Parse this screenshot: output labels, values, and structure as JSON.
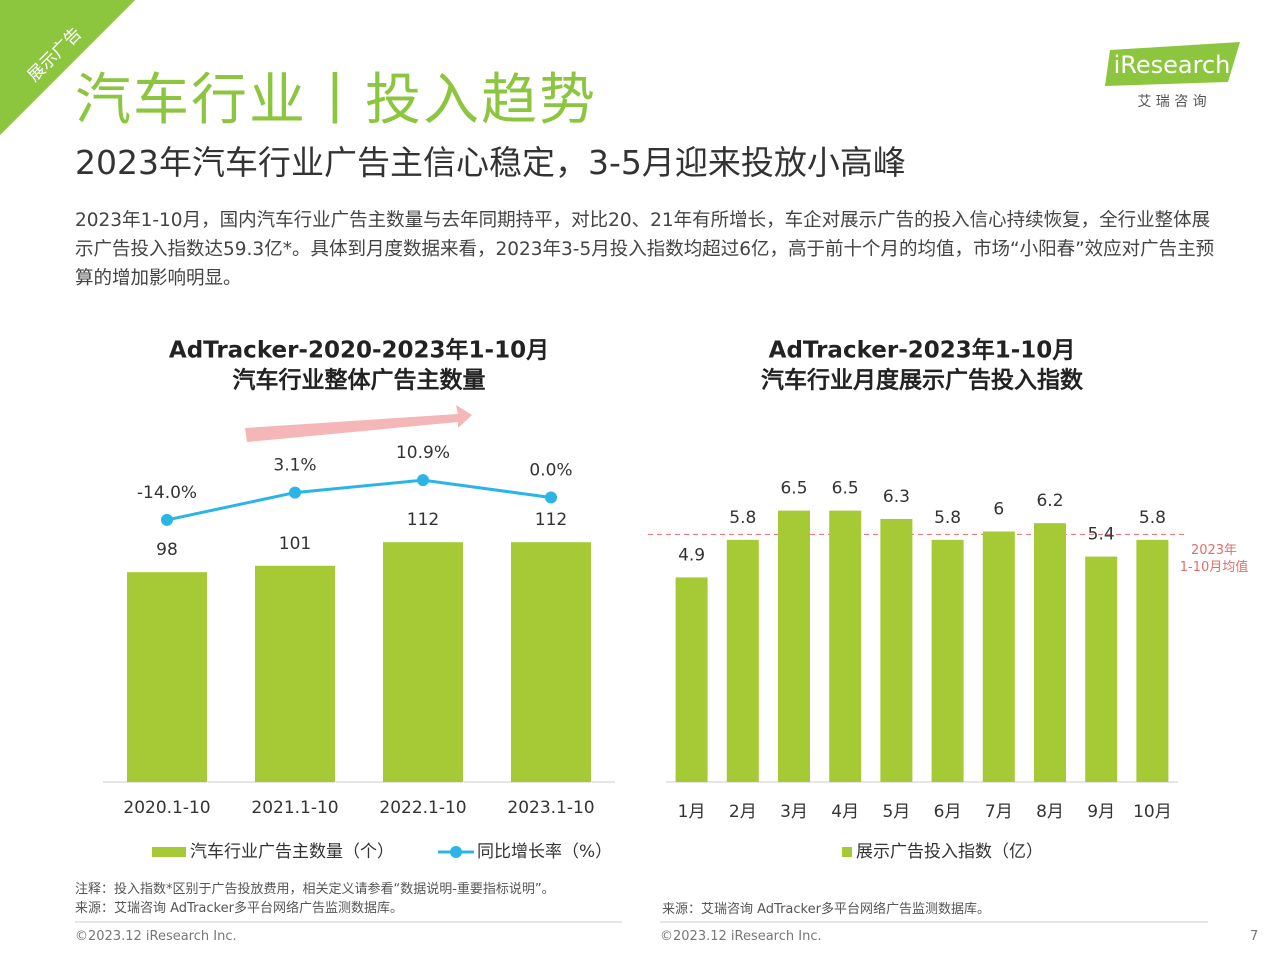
{
  "corner_tag": "展示广告",
  "title": "汽车行业丨投入趋势",
  "subtitle": "2023年汽车行业广告主信心稳定，3-5月迎来投放小高峰",
  "body": "2023年1-10月，国内汽车行业广告主数量与去年同期持平，对比20、21年有所增长，车企对展示广告的投入信心持续恢复，全行业整体展示广告投入指数达59.3亿*。具体到月度数据来看，2023年3-5月投入指数均超过6亿，高于前十个月的均值，市场“小阳春”效应对广告主预算的增加影响明显。",
  "logo": {
    "name": "iResearch",
    "cn": "艾 瑞 咨 询"
  },
  "chart_data": [
    {
      "type": "bar",
      "title": [
        "AdTracker-2020-2023年1-10月",
        "汽车行业整体广告主数量"
      ],
      "categories": [
        "2020.1-10",
        "2021.1-10",
        "2022.1-10",
        "2023.1-10"
      ],
      "series": [
        {
          "name": "汽车行业广告主数量（个）",
          "color": "#a6c936",
          "values": [
            98,
            101,
            112,
            112
          ]
        },
        {
          "name": "同比增长率（%）",
          "color": "#2bb5e6",
          "type": "line",
          "axis": "y2",
          "values": [
            -14.0,
            3.1,
            10.9,
            0.0
          ],
          "value_labels": [
            "-14.0%",
            "3.1%",
            "10.9%",
            "0.0%"
          ]
        }
      ],
      "ylim": [
        0,
        156
      ],
      "y2lim": [
        -178,
        31
      ]
    },
    {
      "type": "bar",
      "title": [
        "AdTracker-2023年1-10月",
        "汽车行业月度展示广告投入指数"
      ],
      "categories": [
        "1月",
        "2月",
        "3月",
        "4月",
        "5月",
        "6月",
        "7月",
        "8月",
        "9月",
        "10月"
      ],
      "series": [
        {
          "name": "展示广告投入指数（亿）",
          "color": "#a6c936",
          "values": [
            4.9,
            5.8,
            6.5,
            6.5,
            6.3,
            5.8,
            6.0,
            6.2,
            5.4,
            5.8
          ]
        }
      ],
      "ylim": [
        0,
        8
      ],
      "reference_line": {
        "value": 5.93,
        "label": [
          "2023年",
          "1-10月均值"
        ],
        "color": "#e86b6b"
      }
    }
  ],
  "notes_left": [
    "注释：投入指数*区别于广告投放费用，相关定义请参看“数据说明-重要指标说明”。",
    "来源：艾瑞咨询 AdTracker多平台网络广告监测数据库。"
  ],
  "notes_right": [
    "来源：艾瑞咨询 AdTracker多平台网络广告监测数据库。"
  ],
  "copyright": "©2023.12 iResearch Inc.",
  "page_number": "7"
}
